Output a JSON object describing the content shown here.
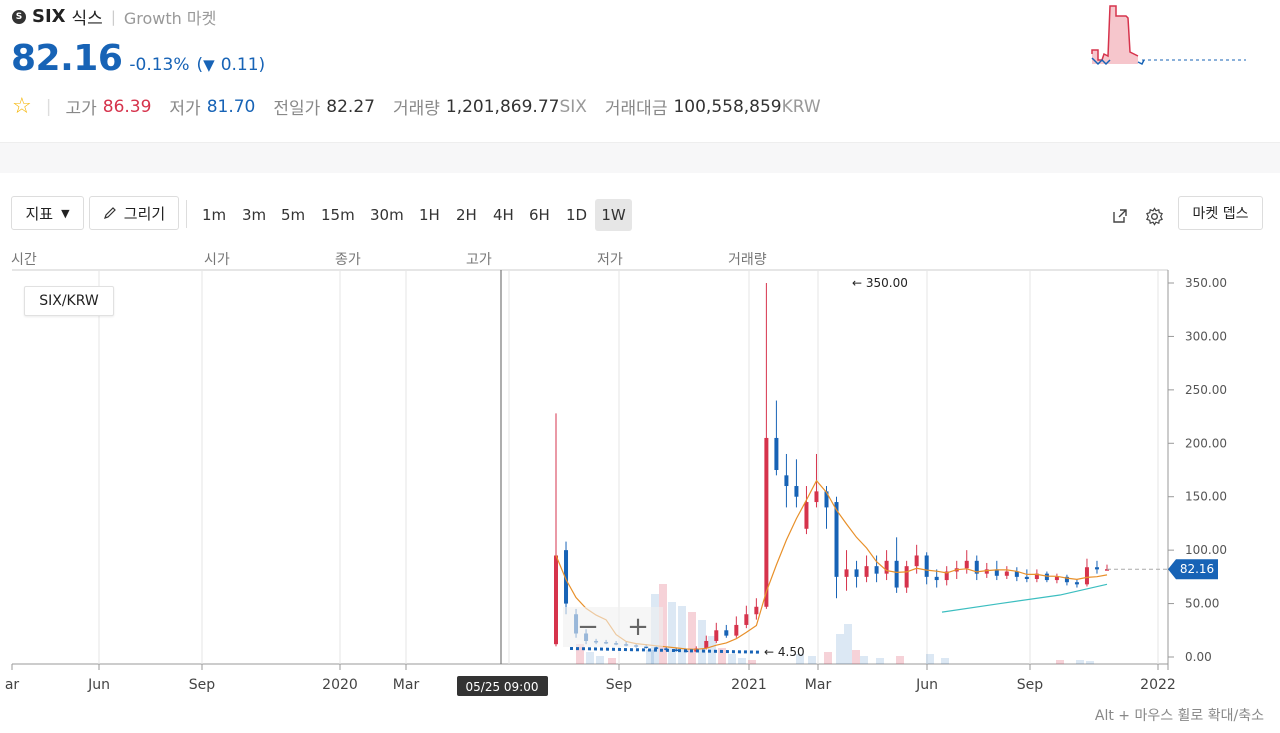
{
  "header": {
    "coin_symbol": "SIX",
    "coin_name": "식스",
    "market": "Growth 마켓",
    "price": "82.16",
    "change_pct": "-0.13%",
    "change_abs_open": "(",
    "change_arrow": "▼",
    "change_abs": "0.11)",
    "stats": [
      {
        "label": "고가",
        "value": "86.39"
      },
      {
        "label": "저가",
        "value": "81.70"
      },
      {
        "label": "전일가",
        "value": "82.27"
      },
      {
        "label": "거래량",
        "value": "1,201,869.77",
        "unit": "SIX"
      },
      {
        "label": "거래대금",
        "value": "100,558,859",
        "unit": "KRW"
      }
    ]
  },
  "toolbar": {
    "indicator_label": "지표",
    "draw_label": "그리기",
    "timeframes": [
      "1m",
      "3m",
      "5m",
      "15m",
      "30m",
      "1H",
      "2H",
      "4H",
      "6H",
      "1D",
      "1W"
    ],
    "active_timeframe": "1W",
    "depth_label": "마켓 뎁스"
  },
  "ohlc_labels": [
    "시간",
    "시가",
    "종가",
    "고가",
    "저가",
    "거래량"
  ],
  "chart_data": {
    "type": "candlestick",
    "pair_label": "SIX/KRW",
    "y_ticks": [
      "350.00",
      "300.00",
      "250.00",
      "200.00",
      "150.00",
      "100.00",
      "50.00",
      "0.00"
    ],
    "x_ticks": [
      "ar",
      "Jun",
      "Sep",
      "2020",
      "Mar",
      "Sep",
      "2021",
      "Mar",
      "Jun",
      "Sep",
      "2022"
    ],
    "crosshair_label": "05/25 09:00",
    "max_label": "← 350.00",
    "min_label": "← 4.50",
    "last_price_label": "82.16",
    "ylim": [
      0,
      350
    ],
    "candles": [
      {
        "o": 12,
        "c": 95,
        "h": 228,
        "l": 10
      },
      {
        "o": 100,
        "c": 50,
        "h": 108,
        "l": 40
      },
      {
        "o": 40,
        "c": 22,
        "h": 45,
        "l": 18
      },
      {
        "o": 22,
        "c": 15,
        "h": 26,
        "l": 12
      },
      {
        "o": 15,
        "c": 14,
        "h": 17,
        "l": 12
      },
      {
        "o": 14,
        "c": 13,
        "h": 16,
        "l": 12
      },
      {
        "o": 13,
        "c": 12,
        "h": 15,
        "l": 11
      },
      {
        "o": 12,
        "c": 11,
        "h": 14,
        "l": 10
      },
      {
        "o": 11,
        "c": 10,
        "h": 12,
        "l": 9
      },
      {
        "o": 10,
        "c": 9,
        "h": 12,
        "l": 8
      },
      {
        "o": 9,
        "c": 8,
        "h": 10,
        "l": 7
      },
      {
        "o": 8,
        "c": 7,
        "h": 9,
        "l": 6
      },
      {
        "o": 7,
        "c": 6,
        "h": 8,
        "l": 5
      },
      {
        "o": 6,
        "c": 5,
        "h": 7,
        "l": 4.5
      },
      {
        "o": 5,
        "c": 8,
        "h": 10,
        "l": 4.5
      },
      {
        "o": 8,
        "c": 15,
        "h": 20,
        "l": 7
      },
      {
        "o": 15,
        "c": 25,
        "h": 32,
        "l": 13
      },
      {
        "o": 25,
        "c": 20,
        "h": 30,
        "l": 18
      },
      {
        "o": 20,
        "c": 30,
        "h": 38,
        "l": 18
      },
      {
        "o": 30,
        "c": 40,
        "h": 48,
        "l": 27
      },
      {
        "o": 40,
        "c": 47,
        "h": 55,
        "l": 35
      },
      {
        "o": 47,
        "c": 205,
        "h": 350,
        "l": 45
      },
      {
        "o": 205,
        "c": 175,
        "h": 240,
        "l": 170
      },
      {
        "o": 170,
        "c": 160,
        "h": 190,
        "l": 140
      },
      {
        "o": 160,
        "c": 150,
        "h": 185,
        "l": 140
      },
      {
        "o": 120,
        "c": 145,
        "h": 160,
        "l": 115
      },
      {
        "o": 145,
        "c": 155,
        "h": 190,
        "l": 140
      },
      {
        "o": 155,
        "c": 140,
        "h": 160,
        "l": 120
      },
      {
        "o": 145,
        "c": 75,
        "h": 150,
        "l": 55
      },
      {
        "o": 75,
        "c": 82,
        "h": 100,
        "l": 62
      },
      {
        "o": 82,
        "c": 75,
        "h": 90,
        "l": 65
      },
      {
        "o": 75,
        "c": 85,
        "h": 95,
        "l": 70
      },
      {
        "o": 85,
        "c": 78,
        "h": 95,
        "l": 70
      },
      {
        "o": 78,
        "c": 90,
        "h": 100,
        "l": 72
      },
      {
        "o": 90,
        "c": 65,
        "h": 112,
        "l": 60
      },
      {
        "o": 65,
        "c": 85,
        "h": 90,
        "l": 60
      },
      {
        "o": 85,
        "c": 95,
        "h": 105,
        "l": 78
      },
      {
        "o": 95,
        "c": 75,
        "h": 98,
        "l": 68
      },
      {
        "o": 75,
        "c": 72,
        "h": 82,
        "l": 65
      },
      {
        "o": 72,
        "c": 80,
        "h": 85,
        "l": 67
      },
      {
        "o": 80,
        "c": 83,
        "h": 90,
        "l": 73
      },
      {
        "o": 83,
        "c": 90,
        "h": 100,
        "l": 78
      },
      {
        "o": 90,
        "c": 78,
        "h": 95,
        "l": 72
      },
      {
        "o": 78,
        "c": 82,
        "h": 88,
        "l": 74
      },
      {
        "o": 82,
        "c": 76,
        "h": 90,
        "l": 72
      },
      {
        "o": 76,
        "c": 80,
        "h": 85,
        "l": 73
      },
      {
        "o": 80,
        "c": 75,
        "h": 84,
        "l": 71
      },
      {
        "o": 75,
        "c": 73,
        "h": 82,
        "l": 70
      },
      {
        "o": 73,
        "c": 78,
        "h": 82,
        "l": 70
      },
      {
        "o": 78,
        "c": 72,
        "h": 80,
        "l": 70
      },
      {
        "o": 72,
        "c": 75,
        "h": 78,
        "l": 69
      },
      {
        "o": 75,
        "c": 70,
        "h": 77,
        "l": 67
      },
      {
        "o": 70,
        "c": 68,
        "h": 73,
        "l": 65
      },
      {
        "o": 68,
        "c": 84,
        "h": 92,
        "l": 66
      },
      {
        "o": 84,
        "c": 82,
        "h": 90,
        "l": 78
      },
      {
        "o": 82,
        "c": 82.16,
        "h": 86.39,
        "l": 81.7
      }
    ]
  },
  "depth_chart": {
    "label": "depth"
  },
  "footer_hint": "Alt + 마우스 휠로 확대/축소"
}
